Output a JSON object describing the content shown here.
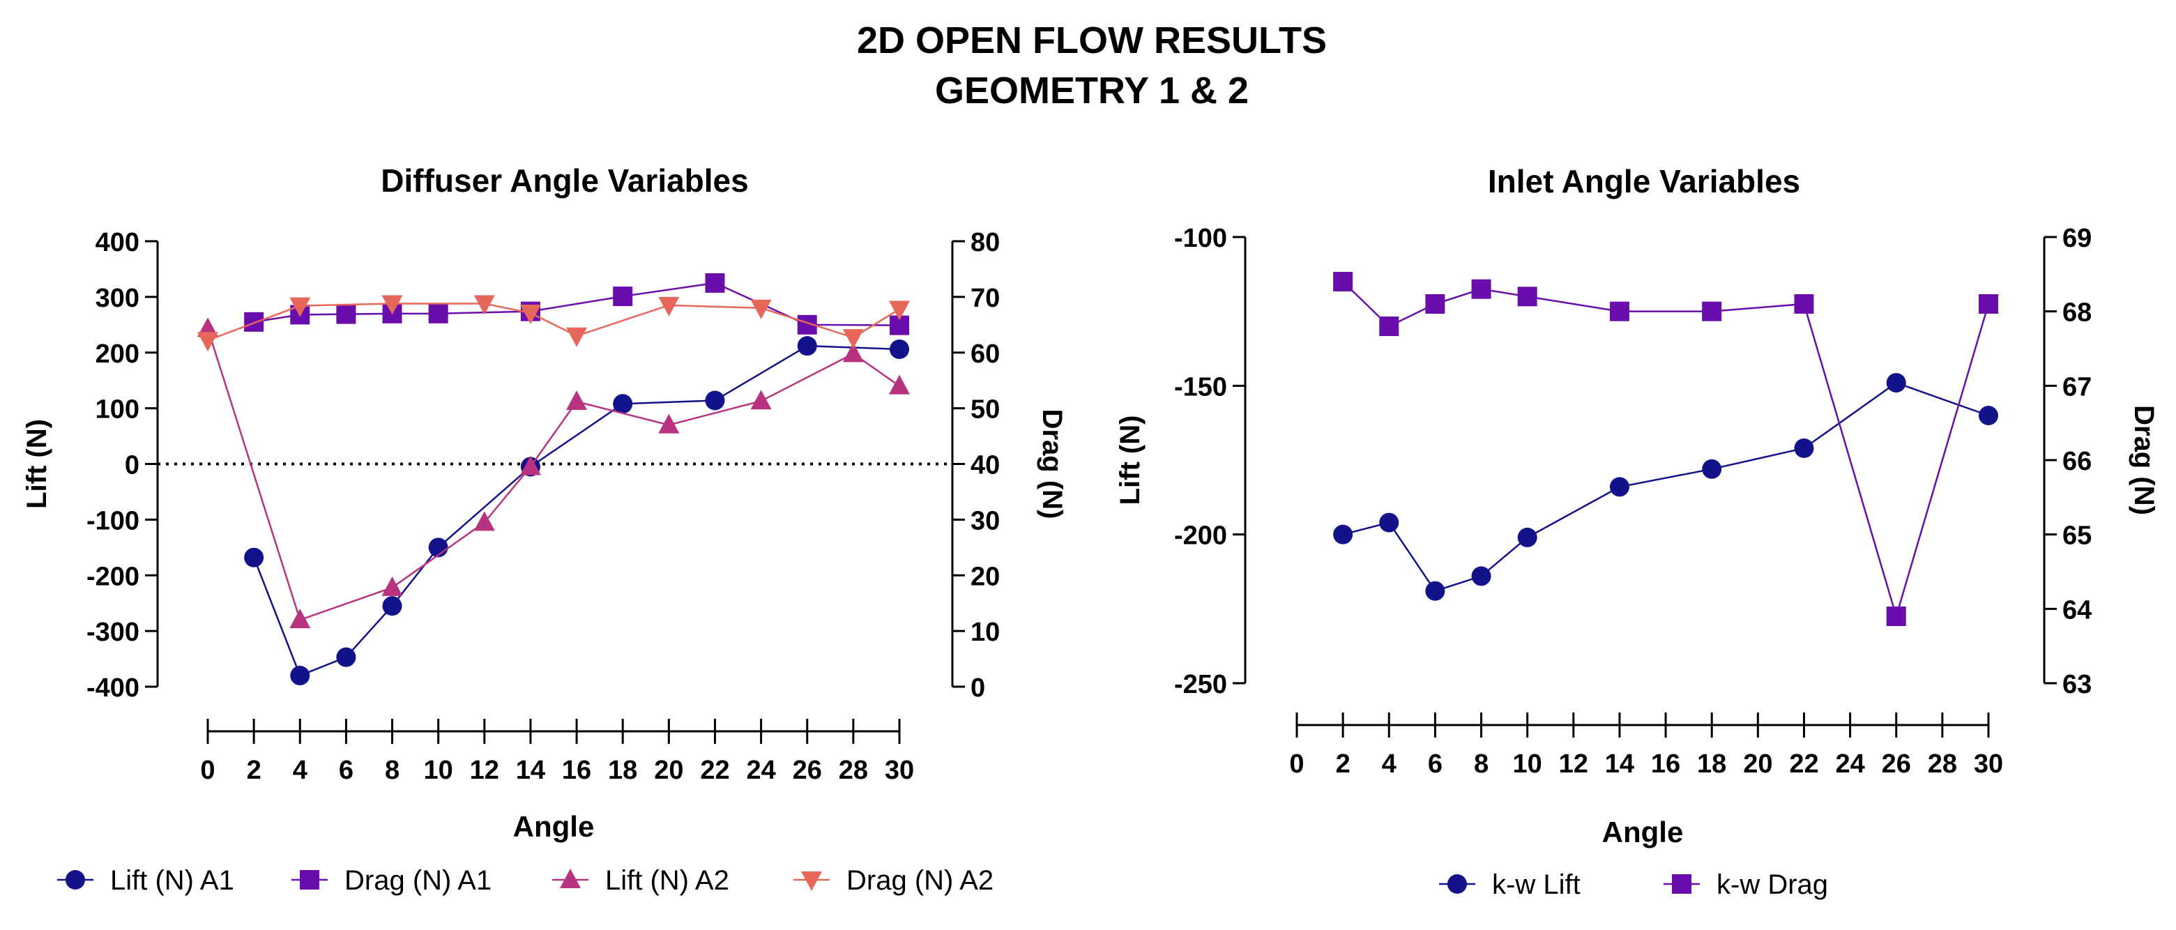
{
  "figure": {
    "title_line1": "2D OPEN FLOW RESULTS",
    "title_line2": "GEOMETRY 1 & 2"
  },
  "colors": {
    "lift_a1": "#12128a",
    "drag_a1": "#6a0dad",
    "lift_a2": "#b8337f",
    "drag_a2": "#e8675b",
    "kw_lift": "#12128a",
    "kw_drag": "#6a0dad"
  },
  "chart_data": [
    {
      "type": "line",
      "title": "Diffuser Angle Variables",
      "xlabel": "Angle",
      "ylabel": "Lift (N)",
      "y2label": "Drag (N)",
      "xlim": [
        0,
        30
      ],
      "x_ticks": [
        0,
        2,
        4,
        6,
        8,
        10,
        12,
        14,
        16,
        18,
        20,
        22,
        24,
        26,
        28,
        30
      ],
      "ylim": [
        -400,
        400
      ],
      "y_ticks": [
        -400,
        -300,
        -200,
        -100,
        0,
        100,
        200,
        300,
        400
      ],
      "y2lim": [
        0,
        80
      ],
      "y2_ticks": [
        0,
        10,
        20,
        30,
        40,
        50,
        60,
        70,
        80
      ],
      "zero_line": "dotted",
      "legend_position": "bottom",
      "series": [
        {
          "name": "Lift (N) A1",
          "axis": "left",
          "marker": "circle",
          "x": [
            2,
            4,
            6,
            8,
            10,
            14,
            18,
            22,
            26,
            30
          ],
          "y": [
            -168,
            -380,
            -347,
            -255,
            -150,
            -5,
            108,
            114,
            212,
            206
          ]
        },
        {
          "name": "Drag (N) A1",
          "axis": "right",
          "marker": "square",
          "x": [
            2,
            4,
            6,
            8,
            10,
            14,
            18,
            22,
            26,
            30
          ],
          "y": [
            65.5,
            66.8,
            66.9,
            67.0,
            67.0,
            67.4,
            70.1,
            72.5,
            65.0,
            64.9
          ]
        },
        {
          "name": "Lift (N) A2",
          "axis": "left",
          "marker": "triangle-up",
          "x": [
            0,
            4,
            8,
            12,
            14,
            16,
            20,
            24,
            28,
            30
          ],
          "y": [
            243,
            -280,
            -222,
            -105,
            -5,
            112,
            70,
            113,
            198,
            140
          ]
        },
        {
          "name": "Drag (N) A2",
          "axis": "right",
          "marker": "triangle-down",
          "x": [
            0,
            4,
            8,
            12,
            14,
            16,
            20,
            24,
            28,
            30
          ],
          "y": [
            62.2,
            68.4,
            68.8,
            68.8,
            67.1,
            63.0,
            68.5,
            68.0,
            62.7,
            67.8
          ]
        }
      ]
    },
    {
      "type": "line",
      "title": "Inlet Angle Variables",
      "xlabel": "Angle",
      "ylabel": "Lift (N)",
      "y2label": "Drag (N)",
      "xlim": [
        0,
        30
      ],
      "x_ticks": [
        0,
        2,
        4,
        6,
        8,
        10,
        12,
        14,
        16,
        18,
        20,
        22,
        24,
        26,
        28,
        30
      ],
      "ylim": [
        -250,
        -100
      ],
      "y_ticks": [
        -250,
        -200,
        -150,
        -100
      ],
      "y2lim": [
        63,
        69
      ],
      "y2_ticks": [
        63,
        64,
        65,
        66,
        67,
        68,
        69
      ],
      "legend_position": "bottom",
      "series": [
        {
          "name": "k-w Lift",
          "axis": "left",
          "marker": "circle",
          "x": [
            2,
            4,
            6,
            8,
            10,
            14,
            18,
            22,
            26,
            30
          ],
          "y": [
            -200,
            -196,
            -219,
            -214,
            -201,
            -184,
            -178,
            -171,
            -149,
            -160
          ]
        },
        {
          "name": "k-w Drag",
          "axis": "right",
          "marker": "square",
          "x": [
            2,
            4,
            6,
            8,
            10,
            14,
            18,
            22,
            26,
            30
          ],
          "y": [
            68.4,
            67.8,
            68.1,
            68.3,
            68.2,
            68.0,
            68.0,
            68.1,
            63.9,
            68.1
          ]
        }
      ]
    }
  ]
}
